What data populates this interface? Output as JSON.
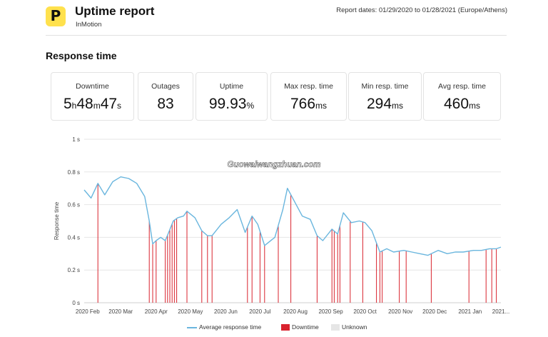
{
  "header": {
    "logo_glyph": "P",
    "title": "Uptime report",
    "subtitle": "InMotion",
    "report_dates": "Report dates: 01/29/2020 to 01/28/2021 (Europe/Athens)"
  },
  "section_title": "Response time",
  "stats": {
    "downtime": {
      "label": "Downtime",
      "h": "5",
      "h_unit": "h",
      "m": "48",
      "m_unit": "m",
      "s": "47",
      "s_unit": "s"
    },
    "outages": {
      "label": "Outages",
      "value": "83"
    },
    "uptime": {
      "label": "Uptime",
      "value": "99.93",
      "unit": "%"
    },
    "max": {
      "label": "Max resp. time",
      "value": "766",
      "unit": "ms"
    },
    "min": {
      "label": "Min resp. time",
      "value": "294",
      "unit": "ms"
    },
    "avg": {
      "label": "Avg resp. time",
      "value": "460",
      "unit": "ms"
    }
  },
  "watermark": "Guowaiwangzhuan.com",
  "colors": {
    "line": "#6ab6de",
    "downtime": "#d9232e",
    "unknown": "#e6e6e6",
    "grid": "#e6e6e6"
  },
  "chart_data": {
    "type": "line",
    "ylabel": "Response time",
    "y_ticks": [
      "0 s",
      "0.2 s",
      "0.4 s",
      "0.6 s",
      "0.8 s",
      "1 s"
    ],
    "ylim": [
      0,
      1
    ],
    "x_ticks": [
      "2020 Feb",
      "2020 Mar",
      "2020 Apr",
      "2020 May",
      "2020 Jun",
      "2020 Jul",
      "2020 Aug",
      "2020 Sep",
      "2020 Oct",
      "2020 Nov",
      "2020 Dec",
      "2021 Jan",
      "2021..."
    ],
    "grid": true,
    "legend": [
      "Average response time",
      "Downtime",
      "Unknown"
    ],
    "series": [
      {
        "name": "Average response time",
        "x": [
          "2020-01-29",
          "2020-02-04",
          "2020-02-10",
          "2020-02-16",
          "2020-02-23",
          "2020-03-01",
          "2020-03-08",
          "2020-03-15",
          "2020-03-22",
          "2020-03-26",
          "2020-03-29",
          "2020-04-01",
          "2020-04-05",
          "2020-04-09",
          "2020-04-12",
          "2020-04-16",
          "2020-04-20",
          "2020-04-25",
          "2020-04-28",
          "2020-05-05",
          "2020-05-11",
          "2020-05-16",
          "2020-05-20",
          "2020-05-28",
          "2020-06-04",
          "2020-06-11",
          "2020-06-18",
          "2020-06-24",
          "2020-06-29",
          "2020-07-05",
          "2020-07-14",
          "2020-07-21",
          "2020-07-25",
          "2020-08-07",
          "2020-08-14",
          "2020-08-20",
          "2020-08-25",
          "2020-09-02",
          "2020-09-07",
          "2020-09-12",
          "2020-09-19",
          "2020-09-26",
          "2020-10-01",
          "2020-10-07",
          "2020-10-14",
          "2020-10-20",
          "2020-10-26",
          "2020-11-04",
          "2020-11-11",
          "2020-11-18",
          "2020-11-25",
          "2020-12-04",
          "2020-12-12",
          "2020-12-19",
          "2020-12-26",
          "2021-01-04",
          "2021-01-11",
          "2021-01-18",
          "2021-01-24",
          "2021-01-28"
        ],
        "y": [
          0.69,
          0.64,
          0.73,
          0.66,
          0.74,
          0.77,
          0.76,
          0.73,
          0.65,
          0.5,
          0.36,
          0.38,
          0.4,
          0.38,
          0.43,
          0.5,
          0.52,
          0.53,
          0.56,
          0.52,
          0.44,
          0.41,
          0.41,
          0.48,
          0.52,
          0.57,
          0.43,
          0.53,
          0.48,
          0.35,
          0.4,
          0.57,
          0.7,
          0.53,
          0.51,
          0.41,
          0.38,
          0.45,
          0.42,
          0.55,
          0.49,
          0.5,
          0.49,
          0.44,
          0.31,
          0.33,
          0.31,
          0.32,
          0.31,
          0.3,
          0.29,
          0.32,
          0.3,
          0.31,
          0.31,
          0.32,
          0.32,
          0.33,
          0.33,
          0.34
        ]
      }
    ],
    "downtime_dates": [
      "2020-02-10",
      "2020-03-26",
      "2020-03-29",
      "2020-04-01",
      "2020-04-09",
      "2020-04-11",
      "2020-04-13",
      "2020-04-15",
      "2020-04-17",
      "2020-04-19",
      "2020-04-28",
      "2020-05-11",
      "2020-05-16",
      "2020-05-20",
      "2020-06-20",
      "2020-06-24",
      "2020-07-01",
      "2020-07-05",
      "2020-07-17",
      "2020-07-28",
      "2020-08-20",
      "2020-09-02",
      "2020-09-04",
      "2020-09-07",
      "2020-09-09",
      "2020-09-18",
      "2020-09-29",
      "2020-10-11",
      "2020-10-14",
      "2020-10-16",
      "2020-10-31",
      "2020-11-06",
      "2020-11-28",
      "2020-12-31",
      "2021-01-15",
      "2021-01-20",
      "2021-01-24"
    ]
  }
}
